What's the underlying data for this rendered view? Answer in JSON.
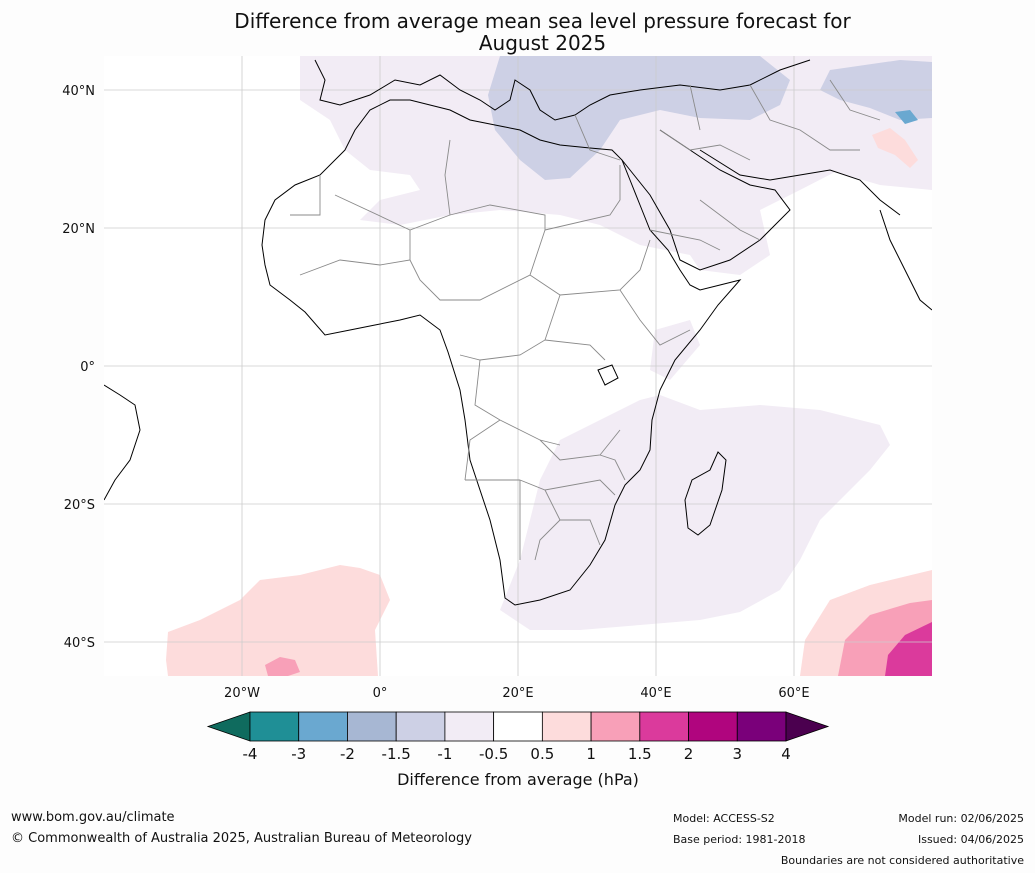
{
  "title": {
    "line1": "Difference from average mean sea level pressure forecast for",
    "line2": "August 2025"
  },
  "map": {
    "lat_labels": [
      "40°N",
      "20°N",
      "0°",
      "20°S",
      "40°S"
    ],
    "lon_labels": [
      "20°W",
      "0°",
      "20°E",
      "40°E",
      "60°E"
    ],
    "colors": {
      "ocean": "#ffffff",
      "coast": "#000000",
      "borders": "#8a8a8a",
      "grid": "#cccccc"
    }
  },
  "colorbar": {
    "tick_labels": [
      "-4",
      "-3",
      "-2",
      "-1.5",
      "-1",
      "-0.5",
      "0.5",
      "1",
      "1.5",
      "2",
      "3",
      "4"
    ],
    "colors": [
      "#0f6b5e",
      "#1f8f96",
      "#6aa8d0",
      "#a7b7d3",
      "#cdd0e5",
      "#f2ecf5",
      "#ffffff",
      "#fddcdc",
      "#f8a0b8",
      "#db3a9c",
      "#b0057e",
      "#7a007a",
      "#4b004f"
    ],
    "title": "Difference from average (hPa)"
  },
  "footer": {
    "url": "www.bom.gov.au/climate",
    "copyright": "© Commonwealth of Australia 2025, Australian Bureau of Meteorology",
    "model": "Model: ACCESS-S2",
    "base_period": "Base period: 1981-2018",
    "model_run": "Model run: 02/06/2025",
    "issued": "Issued: 04/06/2025",
    "disclaimer": "Boundaries are not considered authoritative"
  }
}
